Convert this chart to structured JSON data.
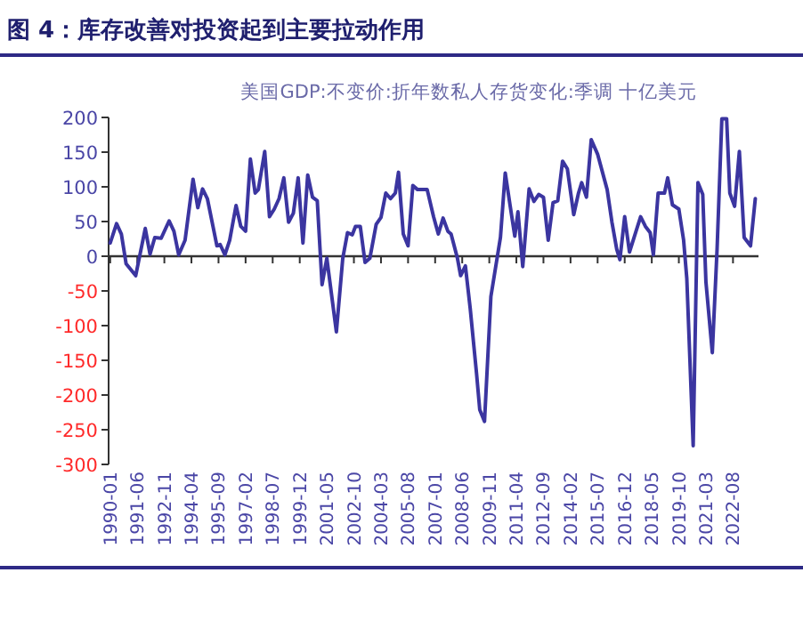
{
  "chart_data": {
    "type": "line",
    "title": "图 4：库存改善对投资起到主要拉动作用",
    "subtitle": "美国GDP:不变价:折年数私人存货变化:季调 十亿美元",
    "x": [
      "1990-01",
      "1990-05",
      "1990-08",
      "1990-11",
      "1991-05",
      "1991-11",
      "1992-02",
      "1992-05",
      "1992-09",
      "1993-02",
      "1993-05",
      "1993-08",
      "1993-12",
      "1994-05",
      "1994-08",
      "1994-11",
      "1995-02",
      "1995-08",
      "1995-10",
      "1996-01",
      "1996-04",
      "1996-08",
      "1996-11",
      "1997-02",
      "1997-05",
      "1997-08",
      "1997-10",
      "1998-02",
      "1998-05",
      "1998-08",
      "1998-11",
      "1999-02",
      "1999-05",
      "1999-08",
      "1999-11",
      "2000-02",
      "2000-05",
      "2000-08",
      "2000-11",
      "2001-02",
      "2001-05",
      "2001-11",
      "2002-03",
      "2002-06",
      "2002-09",
      "2002-11",
      "2003-02",
      "2003-05",
      "2003-08",
      "2003-12",
      "2004-03",
      "2004-06",
      "2004-09",
      "2004-12",
      "2005-02",
      "2005-05",
      "2005-08",
      "2005-11",
      "2006-02",
      "2006-08",
      "2006-12",
      "2007-03",
      "2007-06",
      "2007-09",
      "2007-11",
      "2008-03",
      "2008-05",
      "2008-08",
      "2008-11",
      "2009-03",
      "2009-05",
      "2009-08",
      "2009-12",
      "2010-06",
      "2010-09",
      "2010-12",
      "2011-03",
      "2011-05",
      "2011-08",
      "2011-12",
      "2012-03",
      "2012-06",
      "2012-09",
      "2012-12",
      "2013-03",
      "2013-06",
      "2013-09",
      "2013-12",
      "2014-04",
      "2014-07",
      "2014-09",
      "2014-12",
      "2015-03",
      "2015-07",
      "2015-11",
      "2016-01",
      "2016-04",
      "2016-07",
      "2016-09",
      "2016-12",
      "2017-03",
      "2017-10",
      "2018-01",
      "2018-04",
      "2018-06",
      "2018-09",
      "2019-01",
      "2019-03",
      "2019-06",
      "2019-10",
      "2020-01",
      "2020-03",
      "2020-07",
      "2020-10",
      "2021-01",
      "2021-03",
      "2021-07",
      "2021-10",
      "2022-01",
      "2022-04",
      "2022-06",
      "2022-09",
      "2022-12",
      "2023-03",
      "2023-07",
      "2023-10"
    ],
    "series": [
      {
        "color": "#3b35a0",
        "values": [
          19,
          47,
          32,
          -11,
          -28,
          40,
          3,
          27,
          26,
          51,
          36,
          2,
          23,
          111,
          70,
          97,
          83,
          15,
          17,
          2,
          23,
          73,
          43,
          36,
          140,
          91,
          96,
          151,
          57,
          68,
          83,
          113,
          49,
          62,
          113,
          19,
          117,
          85,
          80,
          -41,
          -3,
          -109,
          -3,
          34,
          31,
          43,
          43,
          -9,
          -3,
          46,
          56,
          91,
          83,
          91,
          121,
          32,
          15,
          102,
          96,
          96,
          57,
          32,
          55,
          36,
          32,
          -3,
          -28,
          -14,
          -75,
          -169,
          -221,
          -238,
          -58,
          27,
          120,
          74,
          29,
          64,
          -15,
          97,
          79,
          89,
          85,
          23,
          77,
          80,
          137,
          126,
          60,
          91,
          106,
          85,
          168,
          147,
          113,
          96,
          49,
          10,
          -5,
          57,
          6,
          57,
          43,
          34,
          2,
          91,
          91,
          113,
          74,
          68,
          23,
          -32,
          -273,
          106,
          89,
          -37,
          -139,
          10,
          198,
          198,
          91,
          72,
          151,
          27,
          15,
          83
        ]
      }
    ],
    "xlim": [
      "1989-12",
      "2023-12"
    ],
    "xticks": [
      "1990-01",
      "1991-06",
      "1992-11",
      "1994-04",
      "1995-09",
      "1997-02",
      "1998-07",
      "1999-12",
      "2001-05",
      "2002-10",
      "2004-03",
      "2005-08",
      "2007-01",
      "2008-06",
      "2009-11",
      "2011-04",
      "2012-09",
      "2014-02",
      "2015-07",
      "2016-12",
      "2018-05",
      "2019-10",
      "2021-03",
      "2022-08"
    ],
    "ylim": [
      -300,
      200
    ],
    "yticks": [
      -300,
      -250,
      -200,
      -150,
      -100,
      -50,
      0,
      50,
      100,
      150,
      200
    ],
    "marker": "none",
    "line_style": "solid"
  }
}
